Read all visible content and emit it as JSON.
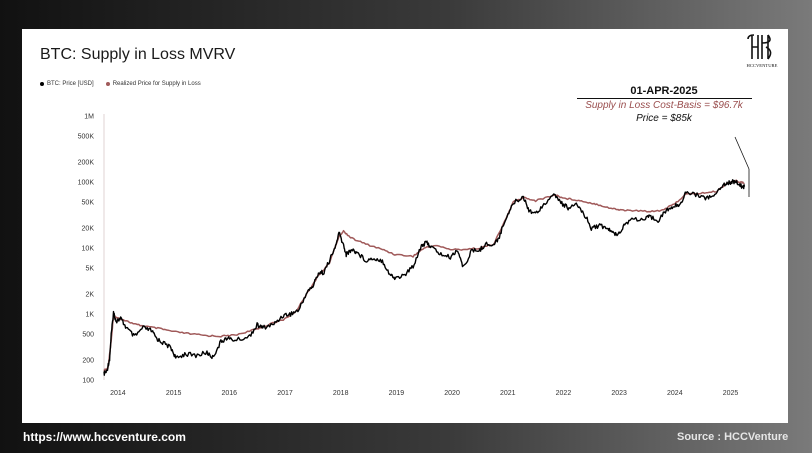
{
  "header": {
    "title": "BTC: Supply in Loss MVRV"
  },
  "legend": {
    "items": [
      {
        "label": "BTC: Price [USD]",
        "color": "#000000"
      },
      {
        "label": "Realized Price for Supply in Loss",
        "color": "#a05a5a"
      }
    ]
  },
  "logo": {
    "text": "HCCVENTURE",
    "icon": "hcc-monogram-icon"
  },
  "annotation": {
    "date": "01-APR-2025",
    "cost_basis": "Supply in Loss Cost-Basis = $96.7k",
    "price": "Price = $85k"
  },
  "footer": {
    "url": "https://www.hccventure.com",
    "source": "Source : HCCVenture"
  },
  "colors": {
    "price": "#000000",
    "realized": "#a05a5a",
    "annotation_cost": "#9a4e4e"
  },
  "chart_data": {
    "type": "line",
    "title": "BTC: Supply in Loss MVRV",
    "yscale": "log",
    "ylim": [
      100,
      1000000
    ],
    "xlim": [
      2013.75,
      2025.35
    ],
    "yticks": [
      {
        "value": 100,
        "label": "100"
      },
      {
        "value": 200,
        "label": "200"
      },
      {
        "value": 500,
        "label": "500"
      },
      {
        "value": 1000,
        "label": "1K"
      },
      {
        "value": 2000,
        "label": "2K"
      },
      {
        "value": 5000,
        "label": "5K"
      },
      {
        "value": 10000,
        "label": "10K"
      },
      {
        "value": 20000,
        "label": "20K"
      },
      {
        "value": 50000,
        "label": "50K"
      },
      {
        "value": 100000,
        "label": "100K"
      },
      {
        "value": 200000,
        "label": "200K"
      },
      {
        "value": 500000,
        "label": "500K"
      },
      {
        "value": 1000000,
        "label": "1M"
      }
    ],
    "xticks": [
      {
        "value": 2014,
        "label": "2014"
      },
      {
        "value": 2015,
        "label": "2015"
      },
      {
        "value": 2016,
        "label": "2016"
      },
      {
        "value": 2017,
        "label": "2017"
      },
      {
        "value": 2018,
        "label": "2018"
      },
      {
        "value": 2019,
        "label": "2019"
      },
      {
        "value": 2020,
        "label": "2020"
      },
      {
        "value": 2021,
        "label": "2021"
      },
      {
        "value": 2022,
        "label": "2022"
      },
      {
        "value": 2023,
        "label": "2023"
      },
      {
        "value": 2024,
        "label": "2024"
      },
      {
        "value": 2025,
        "label": "2025"
      }
    ],
    "series": [
      {
        "name": "BTC: Price [USD]",
        "color": "#000000",
        "points": [
          [
            2013.75,
            125
          ],
          [
            2013.8,
            135
          ],
          [
            2013.85,
            210
          ],
          [
            2013.88,
            480
          ],
          [
            2013.92,
            1050
          ],
          [
            2013.97,
            780
          ],
          [
            2014.05,
            850
          ],
          [
            2014.15,
            620
          ],
          [
            2014.3,
            450
          ],
          [
            2014.45,
            620
          ],
          [
            2014.6,
            560
          ],
          [
            2014.7,
            420
          ],
          [
            2014.8,
            370
          ],
          [
            2014.95,
            310
          ],
          [
            2015.05,
            210
          ],
          [
            2015.2,
            250
          ],
          [
            2015.4,
            235
          ],
          [
            2015.6,
            260
          ],
          [
            2015.7,
            220
          ],
          [
            2015.85,
            380
          ],
          [
            2015.95,
            430
          ],
          [
            2016.1,
            400
          ],
          [
            2016.35,
            450
          ],
          [
            2016.5,
            680
          ],
          [
            2016.6,
            620
          ],
          [
            2016.8,
            700
          ],
          [
            2016.97,
            960
          ],
          [
            2017.1,
            1000
          ],
          [
            2017.25,
            1150
          ],
          [
            2017.4,
            2200
          ],
          [
            2017.5,
            2600
          ],
          [
            2017.6,
            4200
          ],
          [
            2017.7,
            4300
          ],
          [
            2017.8,
            6500
          ],
          [
            2017.9,
            10000
          ],
          [
            2017.97,
            17000
          ],
          [
            2018.05,
            11000
          ],
          [
            2018.1,
            8000
          ],
          [
            2018.2,
            9500
          ],
          [
            2018.3,
            8500
          ],
          [
            2018.45,
            6500
          ],
          [
            2018.6,
            7000
          ],
          [
            2018.75,
            6400
          ],
          [
            2018.88,
            4000
          ],
          [
            2018.97,
            3500
          ],
          [
            2019.15,
            3900
          ],
          [
            2019.3,
            5300
          ],
          [
            2019.45,
            11000
          ],
          [
            2019.55,
            12000
          ],
          [
            2019.65,
            10000
          ],
          [
            2019.8,
            8000
          ],
          [
            2019.97,
            7200
          ],
          [
            2020.1,
            9500
          ],
          [
            2020.2,
            5000
          ],
          [
            2020.35,
            9000
          ],
          [
            2020.5,
            9300
          ],
          [
            2020.6,
            11500
          ],
          [
            2020.75,
            11000
          ],
          [
            2020.85,
            15000
          ],
          [
            2020.97,
            29000
          ],
          [
            2021.1,
            48000
          ],
          [
            2021.28,
            60000
          ],
          [
            2021.38,
            38000
          ],
          [
            2021.5,
            33000
          ],
          [
            2021.65,
            47000
          ],
          [
            2021.85,
            64000
          ],
          [
            2021.97,
            47000
          ],
          [
            2022.1,
            40000
          ],
          [
            2022.25,
            45000
          ],
          [
            2022.4,
            30000
          ],
          [
            2022.5,
            20000
          ],
          [
            2022.65,
            22000
          ],
          [
            2022.8,
            19500
          ],
          [
            2022.9,
            16500
          ],
          [
            2023.0,
            16800
          ],
          [
            2023.1,
            23000
          ],
          [
            2023.25,
            28000
          ],
          [
            2023.45,
            26500
          ],
          [
            2023.55,
            30000
          ],
          [
            2023.7,
            26500
          ],
          [
            2023.85,
            37000
          ],
          [
            2023.97,
            42000
          ],
          [
            2024.1,
            47000
          ],
          [
            2024.2,
            70000
          ],
          [
            2024.4,
            64000
          ],
          [
            2024.55,
            58000
          ],
          [
            2024.7,
            60000
          ],
          [
            2024.85,
            90000
          ],
          [
            2024.95,
            97000
          ],
          [
            2025.05,
            102000
          ],
          [
            2025.15,
            95000
          ],
          [
            2025.2,
            84000
          ],
          [
            2025.25,
            85000
          ]
        ]
      },
      {
        "name": "Realized Price for Supply in Loss",
        "color": "#a05a5a",
        "points": [
          [
            2013.75,
            140
          ],
          [
            2013.82,
            150
          ],
          [
            2013.88,
            400
          ],
          [
            2013.92,
            950
          ],
          [
            2013.97,
            880
          ],
          [
            2014.1,
            820
          ],
          [
            2014.3,
            700
          ],
          [
            2014.5,
            650
          ],
          [
            2014.75,
            600
          ],
          [
            2015.0,
            540
          ],
          [
            2015.3,
            500
          ],
          [
            2015.6,
            470
          ],
          [
            2015.85,
            460
          ],
          [
            2016.1,
            480
          ],
          [
            2016.4,
            560
          ],
          [
            2016.6,
            640
          ],
          [
            2016.97,
            820
          ],
          [
            2017.2,
            1100
          ],
          [
            2017.4,
            2100
          ],
          [
            2017.6,
            3800
          ],
          [
            2017.8,
            6000
          ],
          [
            2017.97,
            15000
          ],
          [
            2018.05,
            18000
          ],
          [
            2018.2,
            14000
          ],
          [
            2018.45,
            11500
          ],
          [
            2018.75,
            9500
          ],
          [
            2018.97,
            8000
          ],
          [
            2019.3,
            7500
          ],
          [
            2019.5,
            10000
          ],
          [
            2019.7,
            11000
          ],
          [
            2019.97,
            9500
          ],
          [
            2020.2,
            9500
          ],
          [
            2020.5,
            10000
          ],
          [
            2020.75,
            11500
          ],
          [
            2020.97,
            28000
          ],
          [
            2021.1,
            50000
          ],
          [
            2021.3,
            58000
          ],
          [
            2021.5,
            52000
          ],
          [
            2021.85,
            64000
          ],
          [
            2022.0,
            57000
          ],
          [
            2022.2,
            54000
          ],
          [
            2022.4,
            50000
          ],
          [
            2022.6,
            46000
          ],
          [
            2022.85,
            40000
          ],
          [
            2023.0,
            38000
          ],
          [
            2023.2,
            37000
          ],
          [
            2023.5,
            36000
          ],
          [
            2023.75,
            37000
          ],
          [
            2023.97,
            45000
          ],
          [
            2024.2,
            65000
          ],
          [
            2024.5,
            68000
          ],
          [
            2024.75,
            72000
          ],
          [
            2024.95,
            98000
          ],
          [
            2025.1,
            104000
          ],
          [
            2025.2,
            98000
          ],
          [
            2025.25,
            96700
          ]
        ]
      }
    ]
  }
}
